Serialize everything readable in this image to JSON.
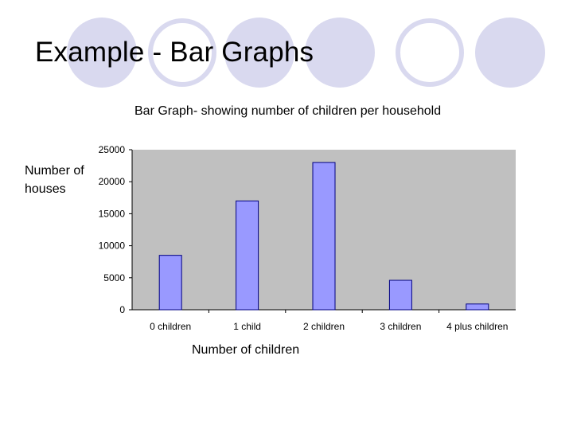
{
  "slide": {
    "title": "Example - Bar Graphs"
  },
  "colors": {
    "circle_fill": "#d9d9ef",
    "circle_outline": "#d9d9ef",
    "plot_background": "#c0c0c0",
    "bar_fill": "#9999ff",
    "bar_stroke": "#000080"
  },
  "chart_data": {
    "type": "bar",
    "title": "Bar Graph- showing number of children per household",
    "xlabel": "Number of children",
    "ylabel": "Number of houses",
    "categories": [
      "0 children",
      "1 child",
      "2 children",
      "3 children",
      "4 plus children"
    ],
    "values": [
      8500,
      17000,
      23000,
      4600,
      900
    ],
    "ylim": [
      0,
      25000
    ],
    "yticks": [
      0,
      5000,
      10000,
      15000,
      20000,
      25000
    ],
    "grid": false,
    "legend": "none"
  }
}
